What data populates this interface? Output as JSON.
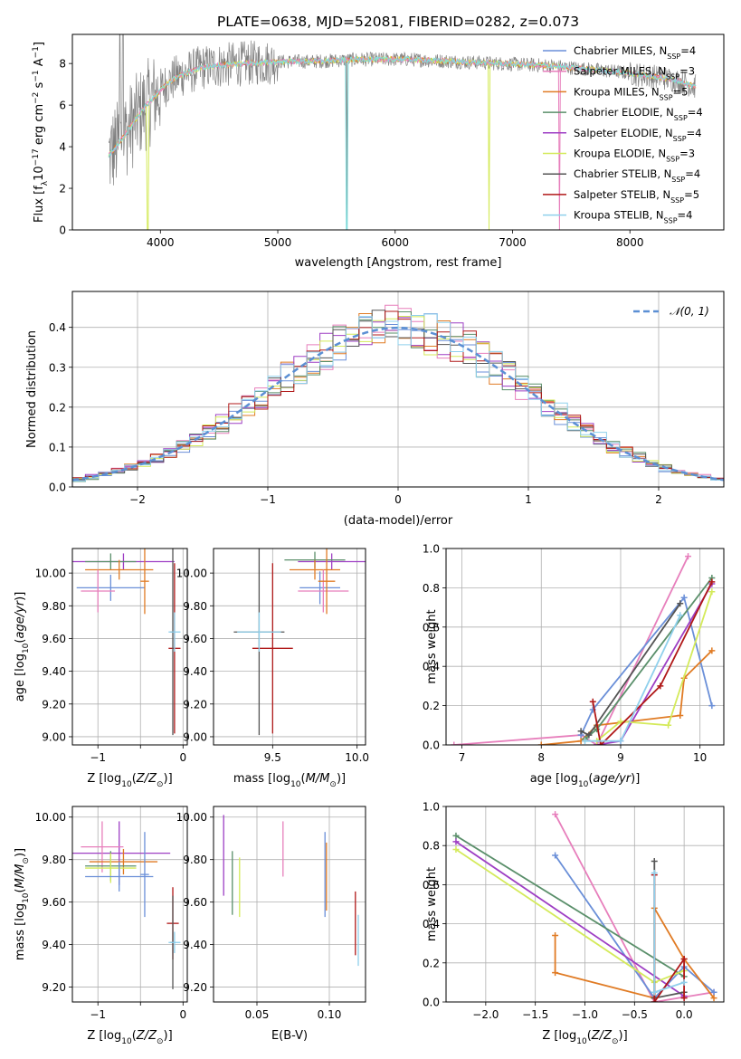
{
  "figure": {
    "title": "PLATE=0638, MJD=52081, FIBERID=0282, z=0.073"
  },
  "colors": {
    "chabrier_miles": "#6a8fd8",
    "salpeter_miles": "#e77fbc",
    "kroupa_miles": "#e07b24",
    "chabrier_elodie": "#5a8f6a",
    "salpeter_elodie": "#9e3fc4",
    "kroupa_elodie": "#d4ea5a",
    "chabrier_stelib": "#555555",
    "salpeter_stelib": "#b01818",
    "kroupa_stelib": "#8fd0ec",
    "data": "#808080",
    "model_cyan": "#7fdede"
  },
  "chart_data": [
    {
      "id": "spectrum",
      "type": "line",
      "title": "PLATE=0638, MJD=52081, FIBERID=0282, z=0.073",
      "xlabel": "wavelength [Angstrom, rest frame]",
      "ylabel": "Flux [f_λ 10^-17 erg cm^-2 s^-1 A^-1]",
      "xlim": [
        3250,
        8800
      ],
      "ylim": [
        0,
        9.4
      ],
      "xticks": [
        4000,
        5000,
        6000,
        7000,
        8000
      ],
      "yticks": [
        0,
        2,
        4,
        6,
        8
      ],
      "grid": false,
      "legend_position": "right",
      "legend": [
        {
          "label": "Chabrier MILES, N",
          "sub": "SSP",
          "suffix": "=4",
          "color": "chabrier_miles"
        },
        {
          "label": "Salpeter MILES, N",
          "sub": "SSP",
          "suffix": "=3",
          "color": "salpeter_miles"
        },
        {
          "label": "Kroupa MILES, N",
          "sub": "SSP",
          "suffix": "=5",
          "color": "kroupa_miles"
        },
        {
          "label": "Chabrier ELODIE, N",
          "sub": "SSP",
          "suffix": "=4",
          "color": "chabrier_elodie"
        },
        {
          "label": "Salpeter ELODIE, N",
          "sub": "SSP",
          "suffix": "=4",
          "color": "salpeter_elodie"
        },
        {
          "label": "Kroupa ELODIE, N",
          "sub": "SSP",
          "suffix": "=3",
          "color": "kroupa_elodie"
        },
        {
          "label": "Chabrier STELIB, N",
          "sub": "SSP",
          "suffix": "=4",
          "color": "chabrier_stelib"
        },
        {
          "label": "Salpeter STELIB, N",
          "sub": "SSP",
          "suffix": "=5",
          "color": "salpeter_stelib"
        },
        {
          "label": "Kroupa STELIB, N",
          "sub": "SSP",
          "suffix": "=4",
          "color": "kroupa_stelib"
        }
      ],
      "continuum": {
        "x": [
          3550,
          3650,
          3750,
          3850,
          3950,
          4050,
          4150,
          4250,
          4350,
          4500,
          4700,
          4900,
          5100,
          5300,
          5500,
          5700,
          5900,
          6100,
          6300,
          6500,
          6700,
          6900,
          7100,
          7300,
          7500,
          7700,
          7900,
          8100,
          8300,
          8450,
          8550
        ],
        "y": [
          3.5,
          4.2,
          5.0,
          5.8,
          6.4,
          7.0,
          7.4,
          7.6,
          7.8,
          7.9,
          8.0,
          8.05,
          8.1,
          8.1,
          8.15,
          8.2,
          8.2,
          8.2,
          8.15,
          8.1,
          8.05,
          8.0,
          7.95,
          7.9,
          7.8,
          7.7,
          7.6,
          7.45,
          7.3,
          7.1,
          6.9
        ]
      }
    },
    {
      "id": "residuals",
      "type": "line",
      "xlabel": "(data-model)/error",
      "ylabel": "Normed distribution",
      "xlim": [
        -2.5,
        2.5
      ],
      "ylim": [
        0,
        0.49
      ],
      "xticks": [
        -2,
        -1,
        0,
        1,
        2
      ],
      "yticks": [
        0.0,
        0.1,
        0.2,
        0.3,
        0.4
      ],
      "grid": true,
      "legend_position": "top-right",
      "legend": [
        {
          "label": "𝒩(0, 1)",
          "color": "#5b8fd4"
        }
      ]
    },
    {
      "id": "age_vs_Z",
      "type": "scatter",
      "xlabel": "Z [log10(Z/Z⊙)]",
      "ylabel": "age [log10(age/yr)]",
      "xlim": [
        -1.3,
        0.05
      ],
      "ylim": [
        8.95,
        10.15
      ],
      "xticks": [
        -1,
        -0.5,
        0
      ],
      "xticklabels": [
        "−1",
        "",
        "0"
      ],
      "yticks": [
        9.0,
        9.2,
        9.4,
        9.6,
        9.8,
        10.0
      ],
      "grid": true,
      "points": [
        {
          "color": "salpeter_elodie",
          "x": -0.7,
          "xerr": 0.6,
          "y": 10.07,
          "yerr": 0.05
        },
        {
          "color": "chabrier_elodie",
          "x": -0.85,
          "xerr": 0.3,
          "y": 10.07,
          "yerr": 0.05
        },
        {
          "color": "kroupa_miles",
          "x": -0.75,
          "xerr": 0.4,
          "y": 10.02,
          "yerr": 0.06
        },
        {
          "color": "chabrier_miles",
          "x": -0.85,
          "xerr": 0.4,
          "y": 9.91,
          "yerr": 0.08
        },
        {
          "color": "salpeter_miles",
          "x": -1.0,
          "xerr": 0.2,
          "y": 9.89,
          "yerr": 0.13
        },
        {
          "color": "kroupa_miles",
          "x": -0.45,
          "xerr": 0.05,
          "y": 9.95,
          "yerr": 0.2
        },
        {
          "color": "salpeter_stelib",
          "x": -0.1,
          "xerr": 0.07,
          "y": 9.54,
          "yerr": 0.52
        },
        {
          "color": "chabrier_stelib",
          "x": -0.12,
          "xerr": 0.03,
          "y": 9.64,
          "yerr": 0.63
        },
        {
          "color": "kroupa_stelib",
          "x": -0.1,
          "xerr": 0.07,
          "y": 9.64,
          "yerr": 0.12
        }
      ]
    },
    {
      "id": "age_vs_mass",
      "type": "scatter",
      "xlabel": "mass [log10(M/M⊙)]",
      "ylabel": "",
      "xlim": [
        9.15,
        10.05
      ],
      "ylim": [
        8.95,
        10.15
      ],
      "xticks": [
        9.5,
        10.0
      ],
      "xticklabels": [
        "9.5",
        "10.0"
      ],
      "yticks": [
        9.0,
        9.2,
        9.4,
        9.6,
        9.8,
        10.0
      ],
      "grid": true,
      "points": [
        {
          "color": "salpeter_elodie",
          "x": 9.85,
          "xerr": 0.2,
          "y": 10.07,
          "yerr": 0.05
        },
        {
          "color": "chabrier_elodie",
          "x": 9.75,
          "xerr": 0.18,
          "y": 10.08,
          "yerr": 0.05
        },
        {
          "color": "kroupa_miles",
          "x": 9.75,
          "xerr": 0.15,
          "y": 10.02,
          "yerr": 0.06
        },
        {
          "color": "chabrier_miles",
          "x": 9.78,
          "xerr": 0.12,
          "y": 9.91,
          "yerr": 0.1
        },
        {
          "color": "salpeter_miles",
          "x": 9.8,
          "xerr": 0.15,
          "y": 9.89,
          "yerr": 0.13
        },
        {
          "color": "kroupa_miles",
          "x": 9.82,
          "xerr": 0.05,
          "y": 9.95,
          "yerr": 0.2
        },
        {
          "color": "salpeter_stelib",
          "x": 9.5,
          "xerr": 0.12,
          "y": 9.54,
          "yerr": 0.52
        },
        {
          "color": "chabrier_stelib",
          "x": 9.42,
          "xerr": 0.15,
          "y": 9.64,
          "yerr": 0.63
        },
        {
          "color": "kroupa_stelib",
          "x": 9.42,
          "xerr": 0.13,
          "y": 9.64,
          "yerr": 0.12
        }
      ]
    },
    {
      "id": "weight_vs_age",
      "type": "line",
      "xlabel": "age [log10(age/yr)]",
      "ylabel": "mass weight",
      "xlim": [
        6.8,
        10.3
      ],
      "ylim": [
        0,
        1.0
      ],
      "xticks": [
        7,
        8,
        9,
        10
      ],
      "yticks": [
        0.0,
        0.2,
        0.4,
        0.6,
        0.8,
        1.0
      ],
      "grid": true,
      "series": [
        {
          "color": "salpeter_miles",
          "points": [
            [
              6.9,
              0.0
            ],
            [
              8.5,
              0.05
            ],
            [
              8.7,
              0.0
            ],
            [
              9.85,
              0.96
            ]
          ]
        },
        {
          "color": "chabrier_miles",
          "points": [
            [
              8.5,
              0.05
            ],
            [
              8.65,
              0.18
            ],
            [
              9.8,
              0.75
            ],
            [
              10.15,
              0.2
            ]
          ]
        },
        {
          "color": "kroupa_miles",
          "points": [
            [
              8.0,
              0.0
            ],
            [
              8.5,
              0.02
            ],
            [
              8.7,
              0.1
            ],
            [
              9.75,
              0.15
            ],
            [
              9.8,
              0.34
            ],
            [
              10.15,
              0.48
            ]
          ]
        },
        {
          "color": "chabrier_elodie",
          "points": [
            [
              8.55,
              0.03
            ],
            [
              8.7,
              0.08
            ],
            [
              10.15,
              0.85
            ]
          ]
        },
        {
          "color": "salpeter_elodie",
          "points": [
            [
              8.7,
              0.0
            ],
            [
              9.0,
              0.02
            ],
            [
              10.15,
              0.82
            ]
          ]
        },
        {
          "color": "kroupa_elodie",
          "points": [
            [
              8.7,
              0.02
            ],
            [
              9.0,
              0.12
            ],
            [
              9.6,
              0.1
            ],
            [
              10.15,
              0.78
            ]
          ]
        },
        {
          "color": "chabrier_stelib",
          "points": [
            [
              8.5,
              0.07
            ],
            [
              8.6,
              0.05
            ],
            [
              9.75,
              0.72
            ]
          ]
        },
        {
          "color": "salpeter_stelib",
          "points": [
            [
              8.65,
              0.22
            ],
            [
              8.75,
              0.0
            ],
            [
              9.5,
              0.3
            ],
            [
              10.15,
              0.83
            ]
          ]
        },
        {
          "color": "kroupa_stelib",
          "points": [
            [
              8.55,
              0.02
            ],
            [
              9.0,
              0.02
            ],
            [
              9.75,
              0.66
            ]
          ]
        }
      ]
    },
    {
      "id": "mass_vs_Z",
      "type": "scatter",
      "xlabel": "Z [log10(Z/Z⊙)]",
      "ylabel": "mass [log10(M/M⊙)]",
      "xlim": [
        -1.3,
        0.05
      ],
      "ylim": [
        9.13,
        10.05
      ],
      "xticks": [
        -1,
        -0.5,
        0
      ],
      "xticklabels": [
        "−1",
        "",
        "0"
      ],
      "yticks": [
        9.2,
        9.4,
        9.6,
        9.8,
        10.0
      ],
      "grid": true,
      "points": [
        {
          "color": "salpeter_elodie",
          "x": -0.75,
          "xerr": 0.6,
          "y": 9.83,
          "yerr": 0.15
        },
        {
          "color": "salpeter_miles",
          "x": -0.95,
          "xerr": 0.25,
          "y": 9.86,
          "yerr": 0.12
        },
        {
          "color": "kroupa_miles",
          "x": -0.7,
          "xerr": 0.4,
          "y": 9.79,
          "yerr": 0.06
        },
        {
          "color": "chabrier_elodie",
          "x": -0.85,
          "xerr": 0.3,
          "y": 9.77,
          "yerr": 0.07
        },
        {
          "color": "kroupa_elodie",
          "x": -0.85,
          "xerr": 0.3,
          "y": 9.76,
          "yerr": 0.07
        },
        {
          "color": "chabrier_miles",
          "x": -0.75,
          "xerr": 0.4,
          "y": 9.72,
          "yerr": 0.07
        },
        {
          "color": "chabrier_miles",
          "x": -0.45,
          "xerr": 0.05,
          "y": 9.73,
          "yerr": 0.2
        },
        {
          "color": "salpeter_stelib",
          "x": -0.12,
          "xerr": 0.07,
          "y": 9.5,
          "yerr": 0.17
        },
        {
          "color": "chabrier_stelib",
          "x": -0.12,
          "xerr": 0.03,
          "y": 9.41,
          "yerr": 0.22
        },
        {
          "color": "kroupa_stelib",
          "x": -0.1,
          "xerr": 0.07,
          "y": 9.41,
          "yerr": 0.05
        }
      ]
    },
    {
      "id": "mass_vs_ebv",
      "type": "scatter",
      "xlabel": "E(B-V)",
      "ylabel": "",
      "xlim": [
        0.02,
        0.125
      ],
      "ylim": [
        9.13,
        10.05
      ],
      "xticks": [
        0.05,
        0.1
      ],
      "xticklabels": [
        "0.05",
        "0.10"
      ],
      "yticks": [
        9.2,
        9.4,
        9.6,
        9.8,
        10.0
      ],
      "grid": true,
      "points": [
        {
          "color": "salpeter_elodie",
          "x": 0.027,
          "xerr": 0,
          "y": 9.82,
          "yerr": 0.19
        },
        {
          "color": "chabrier_elodie",
          "x": 0.033,
          "xerr": 0,
          "y": 9.69,
          "yerr": 0.15
        },
        {
          "color": "kroupa_elodie",
          "x": 0.038,
          "xerr": 0,
          "y": 9.67,
          "yerr": 0.14
        },
        {
          "color": "salpeter_miles",
          "x": 0.068,
          "xerr": 0,
          "y": 9.85,
          "yerr": 0.13
        },
        {
          "color": "chabrier_miles",
          "x": 0.097,
          "xerr": 0,
          "y": 9.73,
          "yerr": 0.2
        },
        {
          "color": "kroupa_miles",
          "x": 0.098,
          "xerr": 0,
          "y": 9.72,
          "yerr": 0.16
        },
        {
          "color": "salpeter_stelib",
          "x": 0.118,
          "xerr": 0,
          "y": 9.5,
          "yerr": 0.15
        },
        {
          "color": "kroupa_stelib",
          "x": 0.12,
          "xerr": 0,
          "y": 9.42,
          "yerr": 0.12
        }
      ]
    },
    {
      "id": "weight_vs_Z",
      "type": "line",
      "xlabel": "Z [log10(Z/Z⊙)]",
      "ylabel": "mass weight",
      "xlim": [
        -2.4,
        0.4
      ],
      "ylim": [
        0,
        1.0
      ],
      "xticks": [
        -2.0,
        -1.5,
        -1.0,
        -0.5,
        0.0
      ],
      "yticks": [
        0.0,
        0.2,
        0.4,
        0.6,
        0.8,
        1.0
      ],
      "grid": true,
      "series": [
        {
          "color": "salpeter_miles",
          "points": [
            [
              -1.3,
              0.96
            ],
            [
              -0.3,
              0.0
            ],
            [
              0.3,
              0.05
            ]
          ]
        },
        {
          "color": "chabrier_miles",
          "points": [
            [
              -1.3,
              0.75
            ],
            [
              -0.3,
              0.02
            ],
            [
              0.0,
              0.18
            ],
            [
              0.3,
              0.05
            ]
          ]
        },
        {
          "color": "kroupa_miles",
          "points": [
            [
              -1.3,
              0.34
            ],
            [
              -1.3,
              0.15
            ],
            [
              -0.3,
              0.02
            ],
            [
              -0.3,
              0.48
            ],
            [
              0.0,
              0.22
            ],
            [
              0.3,
              0.02
            ]
          ]
        },
        {
          "color": "chabrier_elodie",
          "points": [
            [
              -2.3,
              0.85
            ],
            [
              0.0,
              0.13
            ]
          ]
        },
        {
          "color": "salpeter_elodie",
          "points": [
            [
              -2.3,
              0.82
            ],
            [
              0.0,
              0.03
            ]
          ]
        },
        {
          "color": "kroupa_elodie",
          "points": [
            [
              -2.3,
              0.78
            ],
            [
              -0.3,
              0.1
            ],
            [
              0.0,
              0.16
            ]
          ]
        },
        {
          "color": "chabrier_stelib",
          "points": [
            [
              -0.3,
              0.72
            ],
            [
              -0.3,
              0.02
            ],
            [
              0.0,
              0.05
            ]
          ]
        },
        {
          "color": "salpeter_stelib",
          "points": [
            [
              -0.3,
              0.65
            ],
            [
              -0.3,
              0.0
            ],
            [
              0.0,
              0.22
            ],
            [
              0.0,
              0.02
            ]
          ]
        },
        {
          "color": "kroupa_stelib",
          "points": [
            [
              -0.3,
              0.66
            ],
            [
              -0.3,
              0.05
            ],
            [
              0.0,
              0.1
            ]
          ]
        }
      ]
    }
  ]
}
